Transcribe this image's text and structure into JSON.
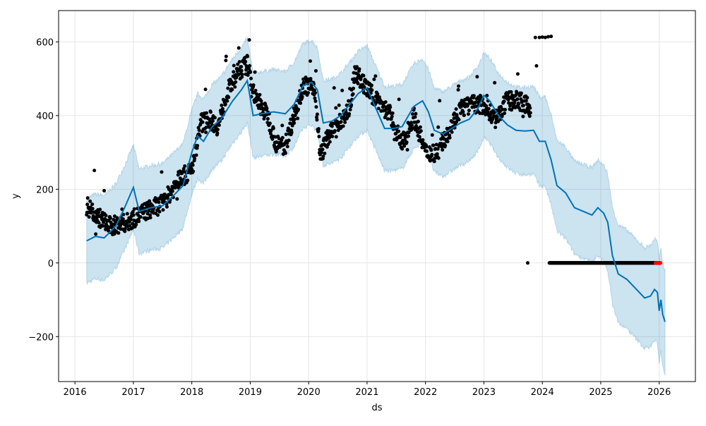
{
  "chart_data": {
    "type": "line",
    "title": "",
    "xlabel": "ds",
    "ylabel": "y",
    "xlim": [
      2015.72,
      2026.62
    ],
    "ylim": [
      -322,
      685
    ],
    "grid": true,
    "xticks": [
      2016,
      2017,
      2018,
      2019,
      2020,
      2021,
      2022,
      2023,
      2024,
      2025,
      2026
    ],
    "xtick_labels": [
      "2016",
      "2017",
      "2018",
      "2019",
      "2020",
      "2021",
      "2022",
      "2023",
      "2024",
      "2025",
      "2026"
    ],
    "yticks": [
      -200,
      0,
      200,
      400,
      600
    ],
    "ytick_labels": [
      "−200",
      "0",
      "200",
      "400",
      "600"
    ],
    "colors": {
      "forecast": "#0072B2",
      "band": "#0072B2",
      "observed": "#000000",
      "highlight": "#ff0000"
    },
    "forecast": {
      "name": "yhat",
      "points": [
        [
          2016.2,
          60
        ],
        [
          2016.35,
          72
        ],
        [
          2016.5,
          68
        ],
        [
          2016.7,
          100
        ],
        [
          2016.85,
          150
        ],
        [
          2017.0,
          205
        ],
        [
          2017.1,
          140
        ],
        [
          2017.3,
          150
        ],
        [
          2017.5,
          155
        ],
        [
          2017.7,
          185
        ],
        [
          2017.85,
          210
        ],
        [
          2018.0,
          300
        ],
        [
          2018.1,
          345
        ],
        [
          2018.2,
          330
        ],
        [
          2018.35,
          370
        ],
        [
          2018.5,
          390
        ],
        [
          2018.7,
          440
        ],
        [
          2018.85,
          470
        ],
        [
          2018.95,
          495
        ],
        [
          2019.05,
          400
        ],
        [
          2019.2,
          405
        ],
        [
          2019.4,
          410
        ],
        [
          2019.6,
          405
        ],
        [
          2019.75,
          430
        ],
        [
          2019.9,
          480
        ],
        [
          2020.05,
          490
        ],
        [
          2020.15,
          470
        ],
        [
          2020.25,
          380
        ],
        [
          2020.4,
          385
        ],
        [
          2020.55,
          400
        ],
        [
          2020.7,
          430
        ],
        [
          2020.85,
          460
        ],
        [
          2021.0,
          475
        ],
        [
          2021.15,
          420
        ],
        [
          2021.3,
          365
        ],
        [
          2021.45,
          365
        ],
        [
          2021.6,
          370
        ],
        [
          2021.8,
          425
        ],
        [
          2021.95,
          440
        ],
        [
          2022.05,
          410
        ],
        [
          2022.15,
          360
        ],
        [
          2022.3,
          350
        ],
        [
          2022.45,
          365
        ],
        [
          2022.6,
          380
        ],
        [
          2022.75,
          390
        ],
        [
          2022.9,
          420
        ],
        [
          2023.0,
          455
        ],
        [
          2023.1,
          440
        ],
        [
          2023.25,
          400
        ],
        [
          2023.4,
          375
        ],
        [
          2023.55,
          360
        ],
        [
          2023.7,
          358
        ],
        [
          2023.85,
          360
        ],
        [
          2023.95,
          330
        ],
        [
          2024.05,
          330
        ],
        [
          2024.15,
          280
        ],
        [
          2024.25,
          210
        ],
        [
          2024.4,
          190
        ],
        [
          2024.55,
          150
        ],
        [
          2024.7,
          140
        ],
        [
          2024.85,
          130
        ],
        [
          2024.95,
          150
        ],
        [
          2025.05,
          135
        ],
        [
          2025.12,
          110
        ],
        [
          2025.2,
          20
        ],
        [
          2025.3,
          -30
        ],
        [
          2025.45,
          -45
        ],
        [
          2025.6,
          -70
        ],
        [
          2025.75,
          -95
        ],
        [
          2025.85,
          -90
        ],
        [
          2025.92,
          -72
        ],
        [
          2025.97,
          -80
        ],
        [
          2026.0,
          -130
        ],
        [
          2026.03,
          -100
        ],
        [
          2026.06,
          -140
        ],
        [
          2026.1,
          -160
        ]
      ]
    },
    "uncertainty_halfwidth": [
      [
        2016.2,
        115
      ],
      [
        2023.3,
        115
      ],
      [
        2026.1,
        140
      ]
    ],
    "observed_trend": [
      [
        2016.2,
        155
      ],
      [
        2016.4,
        125
      ],
      [
        2016.6,
        100
      ],
      [
        2016.9,
        110
      ],
      [
        2017.2,
        140
      ],
      [
        2017.5,
        160
      ],
      [
        2017.8,
        230
      ],
      [
        2018.0,
        250
      ],
      [
        2018.15,
        380
      ],
      [
        2018.3,
        390
      ],
      [
        2018.45,
        370
      ],
      [
        2018.6,
        460
      ],
      [
        2018.8,
        520
      ],
      [
        2018.95,
        540
      ],
      [
        2019.1,
        440
      ],
      [
        2019.3,
        400
      ],
      [
        2019.45,
        320
      ],
      [
        2019.6,
        320
      ],
      [
        2019.75,
        400
      ],
      [
        2019.9,
        480
      ],
      [
        2020.1,
        480
      ],
      [
        2020.2,
        290
      ],
      [
        2020.35,
        350
      ],
      [
        2020.5,
        370
      ],
      [
        2020.7,
        420
      ],
      [
        2020.8,
        520
      ],
      [
        2021.0,
        470
      ],
      [
        2021.2,
        440
      ],
      [
        2021.4,
        400
      ],
      [
        2021.6,
        320
      ],
      [
        2021.8,
        400
      ],
      [
        2022.0,
        300
      ],
      [
        2022.2,
        300
      ],
      [
        2022.4,
        360
      ],
      [
        2022.6,
        420
      ],
      [
        2022.8,
        430
      ],
      [
        2023.0,
        430
      ],
      [
        2023.2,
        390
      ],
      [
        2023.4,
        440
      ],
      [
        2023.6,
        440
      ],
      [
        2023.8,
        420
      ]
    ],
    "observed_extra": [
      [
        2023.75,
        0
      ],
      [
        2023.9,
        535
      ],
      [
        2023.88,
        612
      ],
      [
        2023.95,
        612
      ],
      [
        2024.0,
        613
      ],
      [
        2024.05,
        612
      ],
      [
        2024.1,
        614
      ],
      [
        2024.15,
        615
      ]
    ],
    "observed_zero_range": [
      2024.12,
      2025.94
    ],
    "highlight_range": [
      2025.94,
      2026.02
    ]
  }
}
